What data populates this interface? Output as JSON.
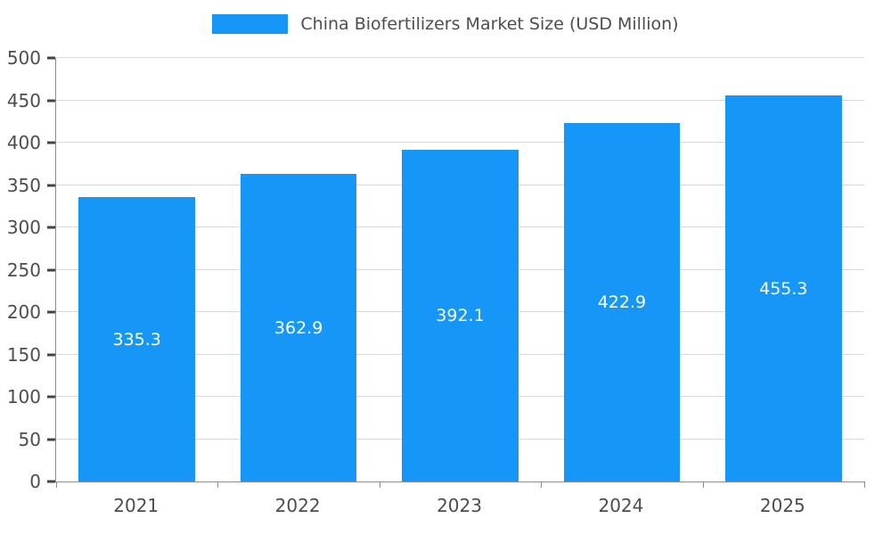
{
  "legend": {
    "title": "China Biofertilizers Market Size (USD Million)"
  },
  "chart_data": {
    "type": "bar",
    "title": "China Biofertilizers Market Size (USD Million)",
    "categories": [
      "2021",
      "2022",
      "2023",
      "2024",
      "2025"
    ],
    "values": [
      335.3,
      362.9,
      392.1,
      422.9,
      455.3
    ],
    "value_labels": [
      "335.3",
      "362.9",
      "392.1",
      "422.9",
      "455.3"
    ],
    "xlabel": "",
    "ylabel": "",
    "ylim": [
      0,
      500
    ],
    "ytick_step": 50,
    "grid": "horizontal",
    "legend_position": "top-center",
    "bar_color": "#1696f6",
    "bar_label_color": "#ffffff",
    "grid_color": "#d9d9d9",
    "axis_color": "#8c8c8c",
    "tick_mark_color": "#444444",
    "tick_label_color": "#4d4d4d"
  }
}
